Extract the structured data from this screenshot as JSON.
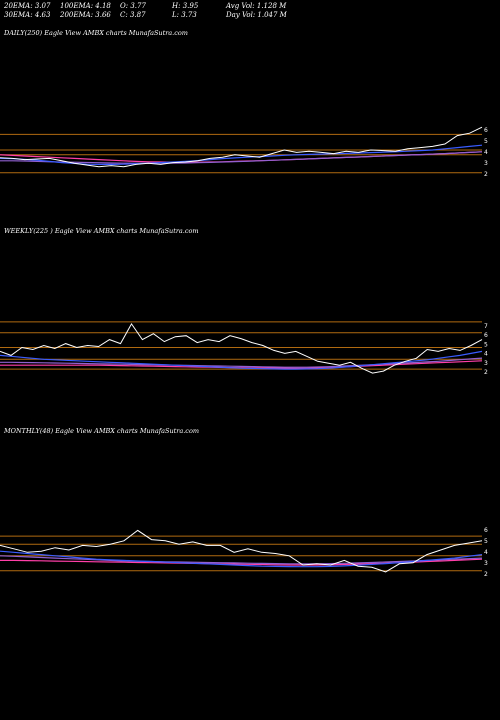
{
  "header": {
    "ema20": "20EMA: 3.07",
    "ema100": "100EMA: 4.18",
    "open": "O: 3.77",
    "high": "H: 3.95",
    "avgvol": "Avg Vol: 1.128 M",
    "ema30": "30EMA: 4.63",
    "ema200": "200EMA: 3.66",
    "close": "C: 3.87",
    "low": "L: 3.73",
    "dayvol": "Day Vol: 1.047 M"
  },
  "colors": {
    "background": "#000000",
    "hline": "#b06a10",
    "price": "#ffffff",
    "ema_blue": "#3a5cff",
    "ema_pink": "#ff3fa8",
    "ema_purple": "#9060d0"
  },
  "chart_data": [
    {
      "type": "line",
      "title": "DAILY(250) Eagle  View  AMBX  charts MunafaSutra.com",
      "y_ticks": [
        "6",
        "5",
        "4",
        "3",
        "2"
      ],
      "hlines": [
        5.3,
        4.0,
        3.6,
        2.1
      ],
      "series": [
        {
          "values": [
            3.35,
            3.3,
            3.2,
            3.25,
            3.3,
            3.1,
            2.9,
            2.75,
            2.6,
            2.7,
            2.6,
            2.8,
            2.9,
            2.8,
            2.95,
            3.0,
            3.1,
            3.3,
            3.4,
            3.6,
            3.5,
            3.4,
            3.7,
            4.0,
            3.8,
            3.9,
            3.8,
            3.7,
            3.9,
            3.8,
            4.0,
            3.95,
            3.9,
            4.1,
            4.2,
            4.3,
            4.5,
            5.2,
            5.4,
            5.9
          ]
        },
        {
          "values": [
            3.3,
            3.28,
            3.22,
            3.15,
            3.05,
            2.95,
            2.88,
            2.82,
            2.8,
            2.8,
            2.82,
            2.86,
            2.9,
            2.95,
            3.0,
            3.05,
            3.12,
            3.2,
            3.28,
            3.34,
            3.4,
            3.45,
            3.5,
            3.56,
            3.6,
            3.63,
            3.66,
            3.68,
            3.72,
            3.75,
            3.78,
            3.82,
            3.85,
            3.9,
            3.95,
            4.0,
            4.1,
            4.2,
            4.3,
            4.4
          ]
        },
        {
          "values": [
            3.1,
            3.1,
            3.08,
            3.05,
            3.02,
            3.0,
            2.98,
            2.96,
            2.94,
            2.92,
            2.9,
            2.9,
            2.9,
            2.9,
            2.91,
            2.92,
            2.94,
            2.97,
            3.0,
            3.03,
            3.06,
            3.1,
            3.14,
            3.18,
            3.22,
            3.26,
            3.3,
            3.34,
            3.38,
            3.42,
            3.46,
            3.5,
            3.54,
            3.58,
            3.62,
            3.66,
            3.7,
            3.75,
            3.8,
            3.85
          ]
        },
        {
          "values": [
            3.6,
            3.55,
            3.5,
            3.45,
            3.4,
            3.35,
            3.3,
            3.25,
            3.2,
            3.15,
            3.1,
            3.05,
            3.02,
            3.0,
            2.98,
            2.98,
            2.98,
            3.0,
            3.02,
            3.05,
            3.08,
            3.11,
            3.14,
            3.18,
            3.22,
            3.26,
            3.3,
            3.34,
            3.38,
            3.42,
            3.46,
            3.5,
            3.54,
            3.58,
            3.62,
            3.66,
            3.7,
            3.75,
            3.8,
            3.85
          ]
        }
      ],
      "ylim": [
        1.5,
        6.5
      ]
    },
    {
      "type": "line",
      "title": "WEEKLY(225              ) Eagle  View  AMBX  charts MunafaSutra.com",
      "y_ticks": [
        "7",
        "6",
        "5",
        "4",
        "3",
        "2"
      ],
      "hlines": [
        7.0,
        5.9,
        4.4,
        3.2,
        2.2
      ],
      "series": [
        {
          "values": [
            4.0,
            3.6,
            4.4,
            4.2,
            4.6,
            4.3,
            4.8,
            4.4,
            4.6,
            4.5,
            5.2,
            4.8,
            6.8,
            5.2,
            5.8,
            5.0,
            5.5,
            5.6,
            4.9,
            5.2,
            5.0,
            5.6,
            5.3,
            4.9,
            4.6,
            4.1,
            3.8,
            4.0,
            3.5,
            3.0,
            2.8,
            2.6,
            2.9,
            2.3,
            1.8,
            2.0,
            2.6,
            3.0,
            3.3,
            4.2,
            4.0,
            4.3,
            4.1,
            4.6,
            5.2
          ]
        },
        {
          "values": [
            3.6,
            3.5,
            3.4,
            3.3,
            3.2,
            3.15,
            3.1,
            3.05,
            3.0,
            2.95,
            2.9,
            2.85,
            2.8,
            2.75,
            2.7,
            2.65,
            2.6,
            2.55,
            2.5,
            2.45,
            2.4,
            2.35,
            2.3,
            2.28,
            2.25,
            2.22,
            2.2,
            2.2,
            2.22,
            2.25,
            2.3,
            2.38,
            2.46,
            2.55,
            2.65,
            2.75,
            2.85,
            2.95,
            3.05,
            3.15,
            3.3,
            3.45,
            3.6,
            3.8,
            4.0
          ]
        },
        {
          "values": [
            2.9,
            2.9,
            2.88,
            2.86,
            2.84,
            2.82,
            2.8,
            2.78,
            2.76,
            2.74,
            2.72,
            2.7,
            2.68,
            2.66,
            2.64,
            2.62,
            2.6,
            2.58,
            2.56,
            2.54,
            2.52,
            2.5,
            2.48,
            2.46,
            2.44,
            2.42,
            2.4,
            2.4,
            2.4,
            2.42,
            2.45,
            2.5,
            2.55,
            2.6,
            2.65,
            2.7,
            2.76,
            2.82,
            2.88,
            2.94,
            3.0,
            3.08,
            3.16,
            3.24,
            3.32
          ]
        },
        {
          "values": [
            2.6,
            2.6,
            2.6,
            2.6,
            2.6,
            2.6,
            2.6,
            2.6,
            2.6,
            2.6,
            2.58,
            2.56,
            2.54,
            2.52,
            2.5,
            2.48,
            2.46,
            2.44,
            2.42,
            2.4,
            2.38,
            2.36,
            2.35,
            2.34,
            2.33,
            2.32,
            2.31,
            2.3,
            2.3,
            2.32,
            2.35,
            2.4,
            2.45,
            2.5,
            2.55,
            2.6,
            2.65,
            2.7,
            2.75,
            2.8,
            2.85,
            2.9,
            2.95,
            3.0,
            3.05
          ]
        }
      ],
      "ylim": [
        1.3,
        7.6
      ]
    },
    {
      "type": "line",
      "title": "MONTHLY(48) Eagle  View  AMBX  charts MunafaSutra.com",
      "y_ticks": [
        "6",
        "5",
        "4",
        "3",
        "2"
      ],
      "hlines": [
        5.0,
        4.3,
        3.3,
        2.0
      ],
      "series": [
        {
          "values": [
            4.2,
            3.9,
            3.6,
            3.7,
            4.0,
            3.8,
            4.2,
            4.1,
            4.3,
            4.6,
            5.5,
            4.7,
            4.6,
            4.3,
            4.5,
            4.2,
            4.2,
            3.6,
            3.9,
            3.6,
            3.5,
            3.3,
            2.5,
            2.6,
            2.5,
            2.9,
            2.4,
            2.3,
            1.9,
            2.6,
            2.7,
            3.4,
            3.8,
            4.2,
            4.4,
            4.6
          ]
        },
        {
          "values": [
            3.7,
            3.6,
            3.5,
            3.4,
            3.3,
            3.2,
            3.1,
            3.0,
            2.95,
            2.9,
            2.85,
            2.8,
            2.75,
            2.7,
            2.65,
            2.6,
            2.55,
            2.5,
            2.45,
            2.4,
            2.38,
            2.36,
            2.35,
            2.35,
            2.38,
            2.42,
            2.48,
            2.55,
            2.62,
            2.7,
            2.8,
            2.9,
            3.0,
            3.1,
            3.25,
            3.4
          ]
        },
        {
          "values": [
            3.3,
            3.25,
            3.2,
            3.15,
            3.1,
            3.05,
            3.0,
            2.95,
            2.9,
            2.85,
            2.82,
            2.8,
            2.78,
            2.76,
            2.74,
            2.72,
            2.7,
            2.68,
            2.66,
            2.64,
            2.62,
            2.6,
            2.6,
            2.6,
            2.62,
            2.65,
            2.68,
            2.72,
            2.76,
            2.8,
            2.85,
            2.9,
            2.95,
            3.0,
            3.05,
            3.1
          ]
        },
        {
          "values": [
            2.9,
            2.9,
            2.88,
            2.86,
            2.84,
            2.82,
            2.8,
            2.78,
            2.76,
            2.74,
            2.72,
            2.7,
            2.68,
            2.66,
            2.64,
            2.62,
            2.6,
            2.58,
            2.56,
            2.54,
            2.52,
            2.5,
            2.5,
            2.5,
            2.52,
            2.55,
            2.58,
            2.62,
            2.66,
            2.7,
            2.75,
            2.8,
            2.85,
            2.9,
            2.95,
            3.0
          ]
        }
      ],
      "ylim": [
        1.2,
        6.4
      ]
    }
  ]
}
